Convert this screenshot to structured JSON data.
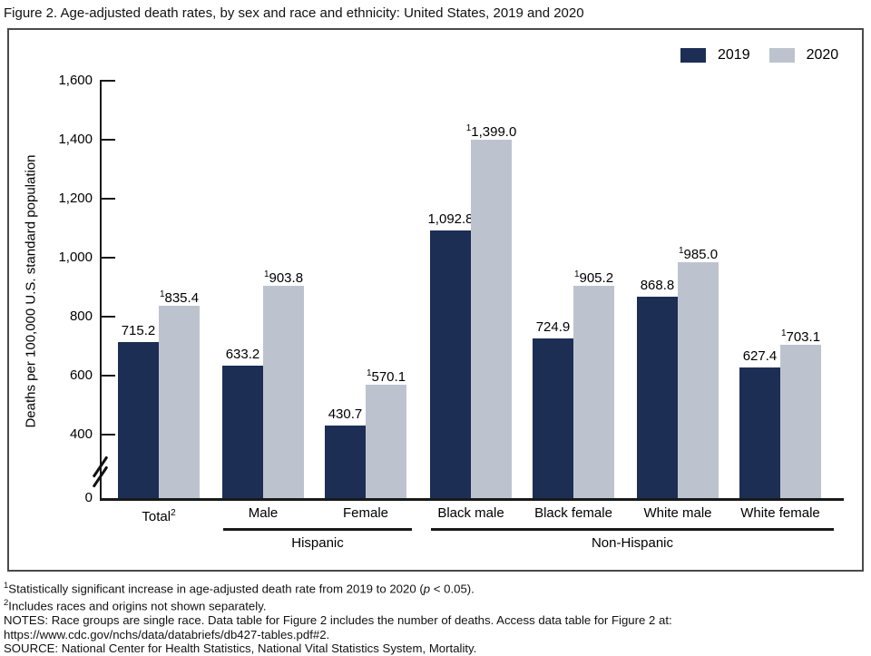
{
  "title": "Figure 2. Age-adjusted death rates, by sex and race and ethnicity: United States, 2019 and 2020",
  "legend": {
    "items": [
      {
        "label": "2019",
        "color": "#1d2e55"
      },
      {
        "label": "2020",
        "color": "#bdc3ce"
      }
    ]
  },
  "chart_data": {
    "type": "bar",
    "title": "Figure 2. Age-adjusted death rates, by sex and race and ethnicity: United States, 2019 and 2020",
    "ylabel": "Deaths per 100,000 U.S. standard population",
    "ylim": [
      0,
      1600
    ],
    "axis_break_between": [
      0,
      400
    ],
    "grid": false,
    "legend_position": "top-right",
    "ytick_values": [
      0,
      400,
      600,
      800,
      1000,
      1200,
      1400,
      1600
    ],
    "ytick_labels": [
      "0",
      "400",
      "600",
      "800",
      "1,000",
      "1,200",
      "1,400",
      "1,600"
    ],
    "categories": [
      {
        "label": "Total",
        "sup": "2"
      },
      {
        "label": "Male",
        "sup": ""
      },
      {
        "label": "Female",
        "sup": ""
      },
      {
        "label": "Black male",
        "sup": ""
      },
      {
        "label": "Black female",
        "sup": ""
      },
      {
        "label": "White male",
        "sup": ""
      },
      {
        "label": "White female",
        "sup": ""
      }
    ],
    "groups": [
      {
        "label": "Hispanic",
        "from": 1,
        "to": 2
      },
      {
        "label": "Non-Hispanic",
        "from": 3,
        "to": 6
      }
    ],
    "series": [
      {
        "name": "2019",
        "color": "#1d2e55",
        "values": [
          715.2,
          633.2,
          430.7,
          1092.8,
          724.9,
          868.8,
          627.4
        ],
        "labels": [
          "715.2",
          "633.2",
          "430.7",
          "1,092.8",
          "724.9",
          "868.8",
          "627.4"
        ],
        "sups": [
          "",
          "",
          "",
          "",
          "",
          "",
          ""
        ]
      },
      {
        "name": "2020",
        "color": "#bdc3ce",
        "values": [
          835.4,
          903.8,
          570.1,
          1399.0,
          905.2,
          985.0,
          703.1
        ],
        "labels": [
          "835.4",
          "903.8",
          "570.1",
          "1,399.0",
          "905.2",
          "985.0",
          "703.1"
        ],
        "sups": [
          "1",
          "1",
          "1",
          "1",
          "1",
          "1",
          "1"
        ]
      }
    ]
  },
  "footnotes": {
    "line1": {
      "sup": "1",
      "pre": "Statistically significant increase in age-adjusted death rate from 2019 to 2020 (",
      "italic": "p",
      "post": " < 0.05)."
    },
    "line2": {
      "sup": "2",
      "text": "Includes races and origins not shown separately."
    },
    "line3": "NOTES: Race groups are single race. Data table for Figure 2 includes the number of deaths. Access data table for Figure 2 at:",
    "line4": "https://www.cdc.gov/nchs/data/databriefs/db427-tables.pdf#2.",
    "line5": "SOURCE: National Center for Health Statistics, National Vital Statistics System, Mortality."
  }
}
